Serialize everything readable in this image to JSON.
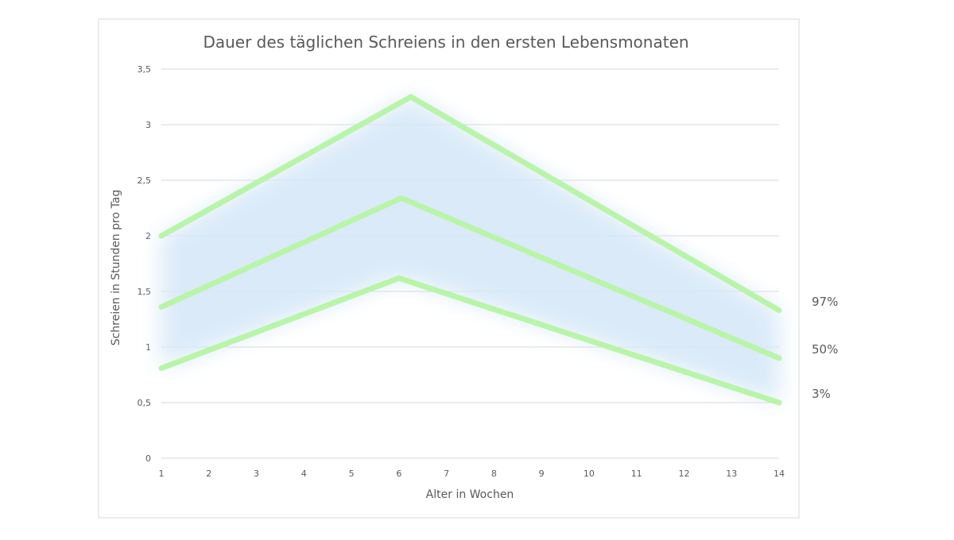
{
  "chart_data": {
    "type": "line",
    "title": "Dauer des täglichen Schreiens in den ersten Lebensmonaten",
    "xlabel": "Alter in Wochen",
    "ylabel": "Schreien in Stunden pro Tag",
    "xlim": [
      1,
      14
    ],
    "ylim": [
      0,
      3.5
    ],
    "x_ticks": [
      "1",
      "2",
      "3",
      "4",
      "5",
      "6",
      "7",
      "8",
      "9",
      "10",
      "11",
      "12",
      "13",
      "14"
    ],
    "y_ticks": [
      {
        "value": 0,
        "label": "0"
      },
      {
        "value": 0.5,
        "label": "0,5"
      },
      {
        "value": 1,
        "label": "1"
      },
      {
        "value": 1.5,
        "label": "1,5"
      },
      {
        "value": 2,
        "label": "2"
      },
      {
        "value": 2.5,
        "label": "2,5"
      },
      {
        "value": 3,
        "label": "3"
      },
      {
        "value": 3.5,
        "label": "3,5"
      }
    ],
    "grid": true,
    "series": [
      {
        "name": "97%",
        "points": [
          [
            1,
            2.0
          ],
          [
            6.25,
            3.25
          ],
          [
            14,
            1.33
          ]
        ]
      },
      {
        "name": "50%",
        "points": [
          [
            1,
            1.36
          ],
          [
            6.05,
            2.34
          ],
          [
            14,
            0.9
          ]
        ]
      },
      {
        "name": "3%",
        "points": [
          [
            1,
            0.81
          ],
          [
            6.0,
            1.62
          ],
          [
            14,
            0.5
          ]
        ]
      }
    ],
    "colors": {
      "line": "#b8f5a8",
      "band": "#d6e8f8",
      "grid": "#d9d9d9",
      "text": "#595959"
    }
  }
}
